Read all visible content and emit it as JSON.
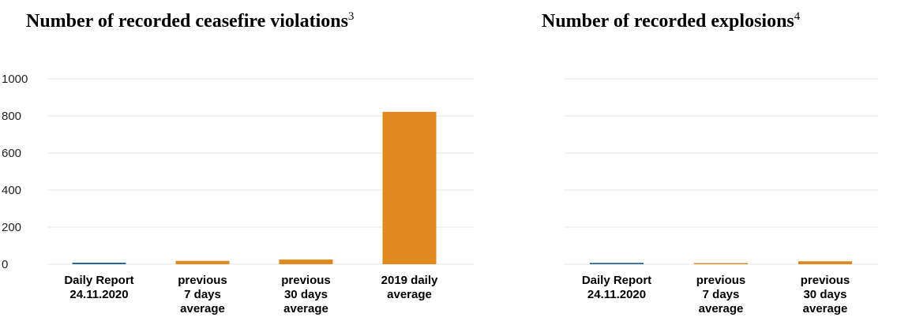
{
  "colors": {
    "current": "#1f5d8f",
    "comparison": "#e08a1e",
    "gridline": "#e6e6e6"
  },
  "chart_data": [
    {
      "type": "bar",
      "title": "Number of recorded ceasefire violations",
      "title_footnote": "3",
      "ylim": [
        0,
        1000
      ],
      "yticks": [
        "0",
        "200",
        "400",
        "600",
        "800",
        "1000"
      ],
      "grid": true,
      "categories": [
        [
          "Daily Report",
          "24.11.2020"
        ],
        [
          "previous",
          "7 days",
          "average"
        ],
        [
          "previous",
          "30 days",
          "average"
        ],
        [
          "2019 daily",
          "average"
        ]
      ],
      "values": [
        8,
        18,
        25,
        822
      ],
      "bar_colors": [
        "current",
        "comparison",
        "comparison",
        "comparison"
      ]
    },
    {
      "type": "bar",
      "title": "Number of recorded explosions",
      "title_footnote": "4",
      "ylim": [
        0,
        1000
      ],
      "grid": true,
      "categories": [
        [
          "Daily Report",
          "24.11.2020"
        ],
        [
          "previous",
          "7 days",
          "average"
        ],
        [
          "previous",
          "30 days",
          "average"
        ]
      ],
      "values": [
        7,
        6,
        16
      ],
      "bar_colors": [
        "current",
        "comparison",
        "comparison"
      ]
    }
  ]
}
